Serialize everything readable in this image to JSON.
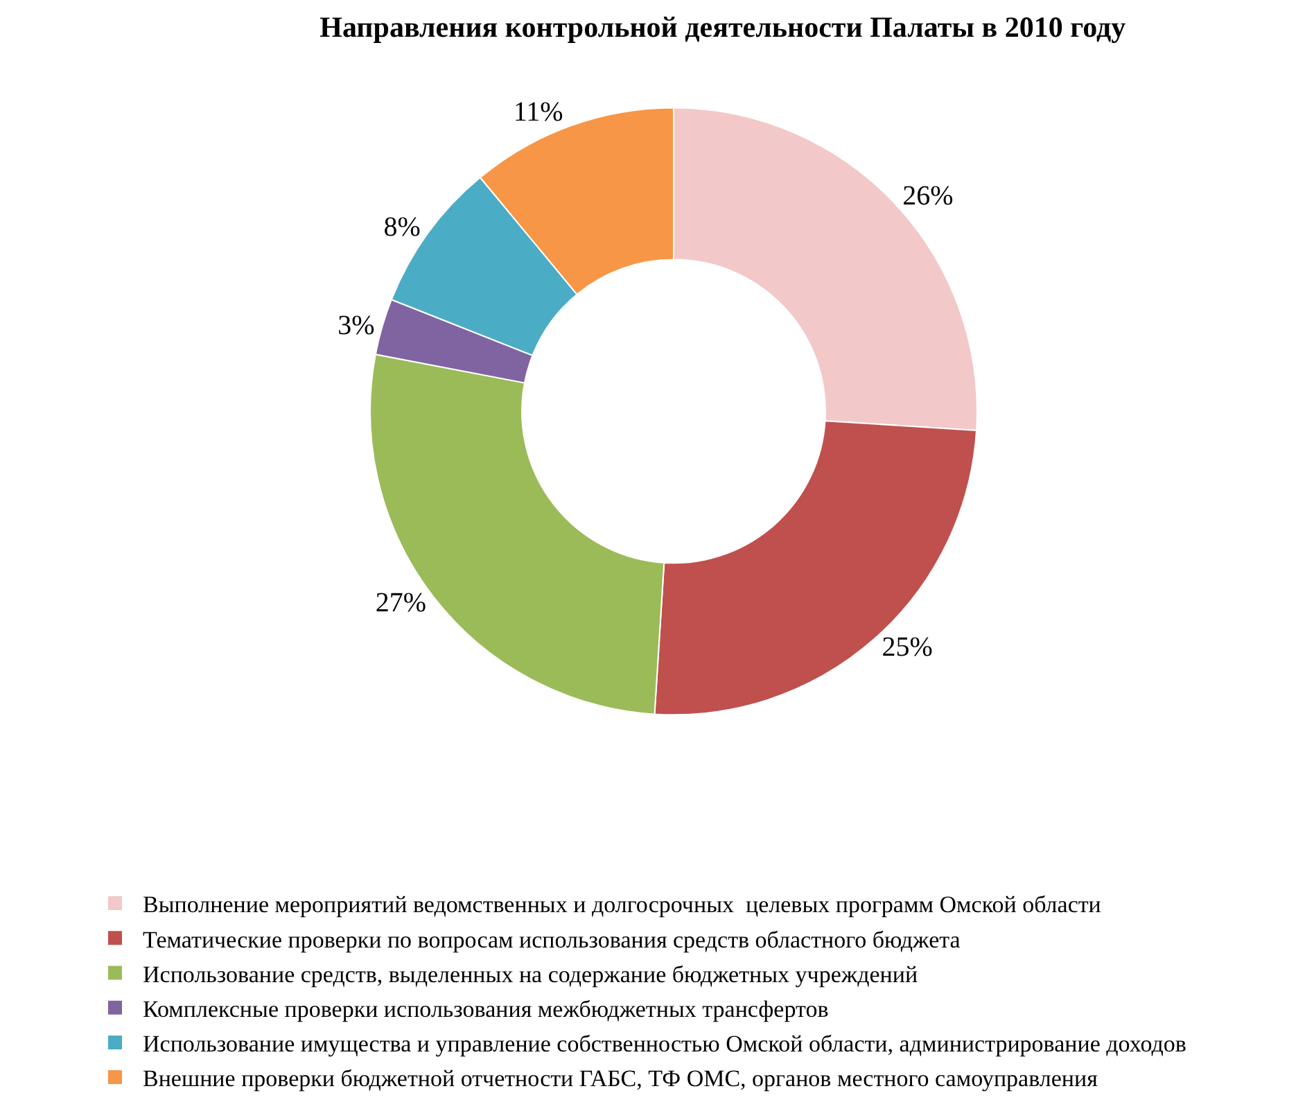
{
  "chart_data": {
    "type": "donut",
    "title": "Направления контрольной деятельности Палаты в 2010 году",
    "categories": [
      "Выполнение мероприятий ведомственных и долгосрочных  целевых программ Омской области",
      "Тематические проверки по вопросам использования средств областного бюджета",
      "Использование средств, выделенных на содержание бюджетных учреждений",
      "Комплексные проверки использования межбюджетных трансфертов",
      "Использование имущества и управление собственностью Омской области, администрирование доходов",
      "Внешние проверки бюджетной отчетности ГАБС, ТФ ОМС, органов местного самоуправления"
    ],
    "values": [
      26,
      25,
      27,
      3,
      8,
      11
    ],
    "value_labels": [
      "26%",
      "25%",
      "27%",
      "3%",
      "8%",
      "11%"
    ],
    "colors": [
      "#f2c8c8",
      "#c0504d",
      "#9bbb59",
      "#8064a2",
      "#4bacc6",
      "#f79646"
    ],
    "legend": "bottom"
  }
}
